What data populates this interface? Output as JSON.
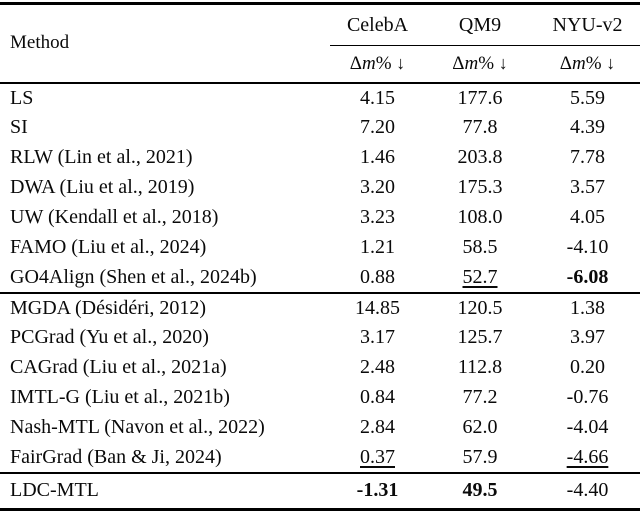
{
  "colors": {
    "background": "#ffffff",
    "text": "#0a0a0a",
    "rule": "#000000"
  },
  "header": {
    "method_label": "Method",
    "datasets": [
      "CelebA",
      "QM9",
      "NYU-v2"
    ],
    "metric": {
      "delta": "Δ",
      "variable": "m",
      "suffix": "% ",
      "arrow": "↓"
    }
  },
  "groups": [
    {
      "rows": [
        {
          "method": "LS",
          "values": [
            {
              "text": "4.15"
            },
            {
              "text": "177.6"
            },
            {
              "text": "5.59"
            }
          ]
        },
        {
          "method": "SI",
          "values": [
            {
              "text": "7.20"
            },
            {
              "text": "77.8"
            },
            {
              "text": "4.39"
            }
          ]
        },
        {
          "method": "RLW (Lin et al., 2021)",
          "values": [
            {
              "text": "1.46"
            },
            {
              "text": "203.8"
            },
            {
              "text": "7.78"
            }
          ]
        },
        {
          "method": "DWA (Liu et al., 2019)",
          "values": [
            {
              "text": "3.20"
            },
            {
              "text": "175.3"
            },
            {
              "text": "3.57"
            }
          ]
        },
        {
          "method": "UW (Kendall et al., 2018)",
          "values": [
            {
              "text": "3.23"
            },
            {
              "text": "108.0"
            },
            {
              "text": "4.05"
            }
          ]
        },
        {
          "method": "FAMO (Liu et al., 2024)",
          "values": [
            {
              "text": "1.21"
            },
            {
              "text": "58.5"
            },
            {
              "text": "-4.10"
            }
          ]
        },
        {
          "method": "GO4Align (Shen et al., 2024b)",
          "values": [
            {
              "text": "0.88"
            },
            {
              "text": "52.7",
              "style": "underline"
            },
            {
              "text": "-6.08",
              "style": "bold"
            }
          ]
        }
      ]
    },
    {
      "rows": [
        {
          "method": "MGDA (Désidéri, 2012)",
          "values": [
            {
              "text": "14.85"
            },
            {
              "text": "120.5"
            },
            {
              "text": "1.38"
            }
          ]
        },
        {
          "method": "PCGrad (Yu et al., 2020)",
          "values": [
            {
              "text": "3.17"
            },
            {
              "text": "125.7"
            },
            {
              "text": "3.97"
            }
          ]
        },
        {
          "method": "CAGrad (Liu et al., 2021a)",
          "values": [
            {
              "text": "2.48"
            },
            {
              "text": "112.8"
            },
            {
              "text": "0.20"
            }
          ]
        },
        {
          "method": "IMTL-G (Liu et al., 2021b)",
          "values": [
            {
              "text": "0.84"
            },
            {
              "text": "77.2"
            },
            {
              "text": "-0.76"
            }
          ]
        },
        {
          "method": "Nash-MTL (Navon et al., 2022)",
          "values": [
            {
              "text": "2.84"
            },
            {
              "text": "62.0"
            },
            {
              "text": "-4.04"
            }
          ]
        },
        {
          "method": "FairGrad (Ban & Ji, 2024)",
          "values": [
            {
              "text": "0.37",
              "style": "underline"
            },
            {
              "text": "57.9"
            },
            {
              "text": "-4.66",
              "style": "underline"
            }
          ]
        }
      ]
    },
    {
      "rows": [
        {
          "method": "LDC-MTL",
          "values": [
            {
              "text": "-1.31",
              "style": "bold"
            },
            {
              "text": "49.5",
              "style": "bold"
            },
            {
              "text": "-4.40"
            }
          ]
        }
      ]
    }
  ]
}
